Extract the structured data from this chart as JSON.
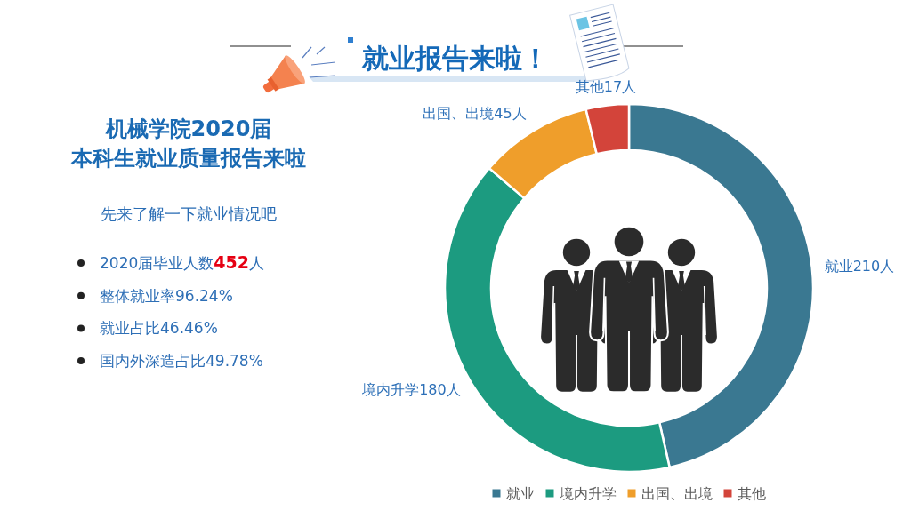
{
  "chart_data": {
    "type": "donut",
    "title": "就业报告来啦！",
    "subtitle": "机械学院2020届本科生就业质量报告来啦",
    "categories": [
      "就业",
      "境内升学",
      "出国、出境",
      "其他"
    ],
    "values": [
      210,
      180,
      45,
      17
    ],
    "colors": [
      "#3a7891",
      "#1c9b80",
      "#ef9e2b",
      "#d3443a"
    ],
    "value_labels": [
      "就业210人",
      "境内升学180人",
      "出国、出境45人",
      "其他17人"
    ],
    "legend": "bottom",
    "annotations": [
      "先来了解一下就业情况吧",
      "2020届毕业人数452人",
      "整体就业率96.24%",
      "就业占比46.46%",
      "国内外深造占比49.78%"
    ]
  }
}
